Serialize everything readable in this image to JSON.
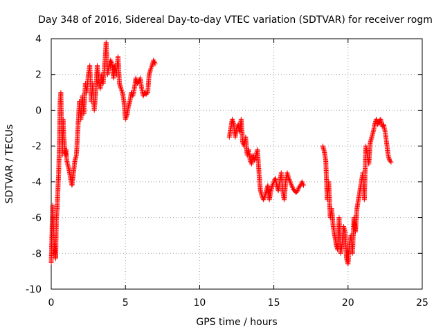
{
  "chart_data": {
    "type": "scatter",
    "title": "Day 348 of 2016, Sidereal Day-to-day VTEC variation (SDTVAR) for receiver rogm",
    "xlabel": "GPS time / hours",
    "ylabel": "SDTVAR / TECUs",
    "xlim": [
      0,
      25
    ],
    "ylim": [
      -10,
      4
    ],
    "x_ticks": [
      0,
      5,
      10,
      15,
      20,
      25
    ],
    "y_ticks": [
      -10,
      -8,
      -6,
      -4,
      -2,
      0,
      2,
      4
    ],
    "grid": true,
    "marker": "plus",
    "color": "#ff0000",
    "series": [
      {
        "x": [
          0.0,
          0.1,
          0.2,
          0.3,
          0.35,
          0.4,
          0.45,
          0.5,
          0.55,
          0.6,
          0.65,
          0.7,
          0.75,
          0.8,
          0.85,
          0.9,
          0.95,
          1.0,
          1.05,
          1.1,
          1.2,
          1.3,
          1.4,
          1.5,
          1.6,
          1.7,
          1.8,
          1.9,
          2.0,
          2.1,
          2.2,
          2.3,
          2.4,
          2.5,
          2.6,
          2.7,
          2.8,
          2.9,
          3.0,
          3.1,
          3.2,
          3.3,
          3.4,
          3.5,
          3.6,
          3.7,
          3.8,
          3.9,
          4.0,
          4.1,
          4.2,
          4.3,
          4.4,
          4.5,
          4.6,
          4.7,
          4.8,
          4.9,
          5.0,
          5.1,
          5.2,
          5.3,
          5.4,
          5.5,
          5.6,
          5.7,
          5.8,
          5.9,
          6.0,
          6.1,
          6.2,
          6.3,
          6.4,
          6.5,
          6.6,
          6.7,
          6.8,
          6.9,
          7.0
        ],
        "y": [
          -8.5,
          -5.3,
          -7.5,
          -8.3,
          -6.0,
          -5.5,
          -4.5,
          -3.5,
          -2.0,
          0.5,
          1.0,
          -1.0,
          -2.5,
          -0.5,
          -1.5,
          -2.0,
          -2.5,
          -2.2,
          -2.8,
          -3.0,
          -3.3,
          -3.8,
          -4.2,
          -3.5,
          -2.8,
          -2.5,
          -1.0,
          0.5,
          -0.5,
          0.8,
          -0.2,
          1.5,
          1.0,
          2.0,
          2.5,
          0.5,
          1.5,
          0.0,
          1.0,
          2.5,
          1.8,
          1.2,
          2.0,
          1.5,
          2.5,
          3.8,
          2.0,
          2.5,
          2.8,
          2.6,
          1.8,
          2.5,
          2.0,
          3.0,
          1.5,
          1.2,
          1.0,
          0.5,
          -0.5,
          -0.3,
          0.2,
          0.5,
          1.0,
          0.8,
          1.2,
          1.8,
          1.5,
          1.6,
          1.8,
          1.2,
          0.8,
          1.0,
          0.9,
          1.0,
          2.0,
          2.3,
          2.5,
          2.8,
          2.6
        ]
      },
      {
        "x": [
          12.0,
          12.1,
          12.2,
          12.3,
          12.4,
          12.5,
          12.6,
          12.7,
          12.8,
          12.9,
          13.0,
          13.1,
          13.2,
          13.3,
          13.4,
          13.5,
          13.6,
          13.7,
          13.8,
          13.9,
          14.0,
          14.1,
          14.2,
          14.3,
          14.4,
          14.5,
          14.6,
          14.7,
          14.8,
          14.9,
          15.0,
          15.1,
          15.2,
          15.3,
          15.4,
          15.5,
          15.6,
          15.7,
          15.8,
          15.9,
          16.0,
          16.1,
          16.2,
          16.3,
          16.4,
          16.5,
          16.6,
          16.7,
          16.8,
          16.9,
          17.0
        ],
        "y": [
          -1.5,
          -1.0,
          -0.5,
          -0.8,
          -1.5,
          -1.0,
          -0.8,
          -1.2,
          -0.5,
          -1.8,
          -2.0,
          -1.5,
          -2.5,
          -2.2,
          -2.8,
          -3.0,
          -2.5,
          -2.8,
          -2.5,
          -2.2,
          -3.5,
          -4.5,
          -4.8,
          -5.0,
          -4.8,
          -4.5,
          -4.2,
          -5.0,
          -4.5,
          -4.2,
          -4.0,
          -3.8,
          -4.2,
          -4.5,
          -4.0,
          -3.5,
          -4.5,
          -5.0,
          -4.0,
          -3.5,
          -3.8,
          -4.0,
          -4.2,
          -4.4,
          -4.5,
          -4.6,
          -4.5,
          -4.3,
          -4.2,
          -4.0,
          -4.2
        ]
      },
      {
        "x": [
          18.3,
          18.4,
          18.5,
          18.6,
          18.7,
          18.8,
          18.9,
          19.0,
          19.1,
          19.2,
          19.3,
          19.4,
          19.5,
          19.6,
          19.7,
          19.8,
          19.9,
          20.0,
          20.1,
          20.2,
          20.3,
          20.4,
          20.5,
          20.6,
          20.7,
          20.8,
          20.9,
          21.0,
          21.1,
          21.2,
          21.3,
          21.4,
          21.5,
          21.6,
          21.7,
          21.8,
          21.9,
          22.0,
          22.1,
          22.2,
          22.3,
          22.4,
          22.5,
          22.6,
          22.7,
          22.8,
          22.9
        ],
        "y": [
          -2.0,
          -2.3,
          -2.8,
          -5.0,
          -4.0,
          -6.0,
          -5.5,
          -6.5,
          -7.0,
          -7.5,
          -7.8,
          -6.0,
          -8.0,
          -7.5,
          -6.5,
          -6.8,
          -8.3,
          -8.6,
          -7.5,
          -7.0,
          -8.0,
          -6.0,
          -6.8,
          -5.5,
          -5.0,
          -4.5,
          -4.0,
          -3.5,
          -5.0,
          -2.0,
          -2.5,
          -3.0,
          -1.8,
          -1.5,
          -1.2,
          -0.8,
          -0.5,
          -0.8,
          -0.6,
          -0.5,
          -0.9,
          -0.8,
          -1.2,
          -1.8,
          -2.5,
          -2.8,
          -2.9
        ]
      }
    ]
  }
}
